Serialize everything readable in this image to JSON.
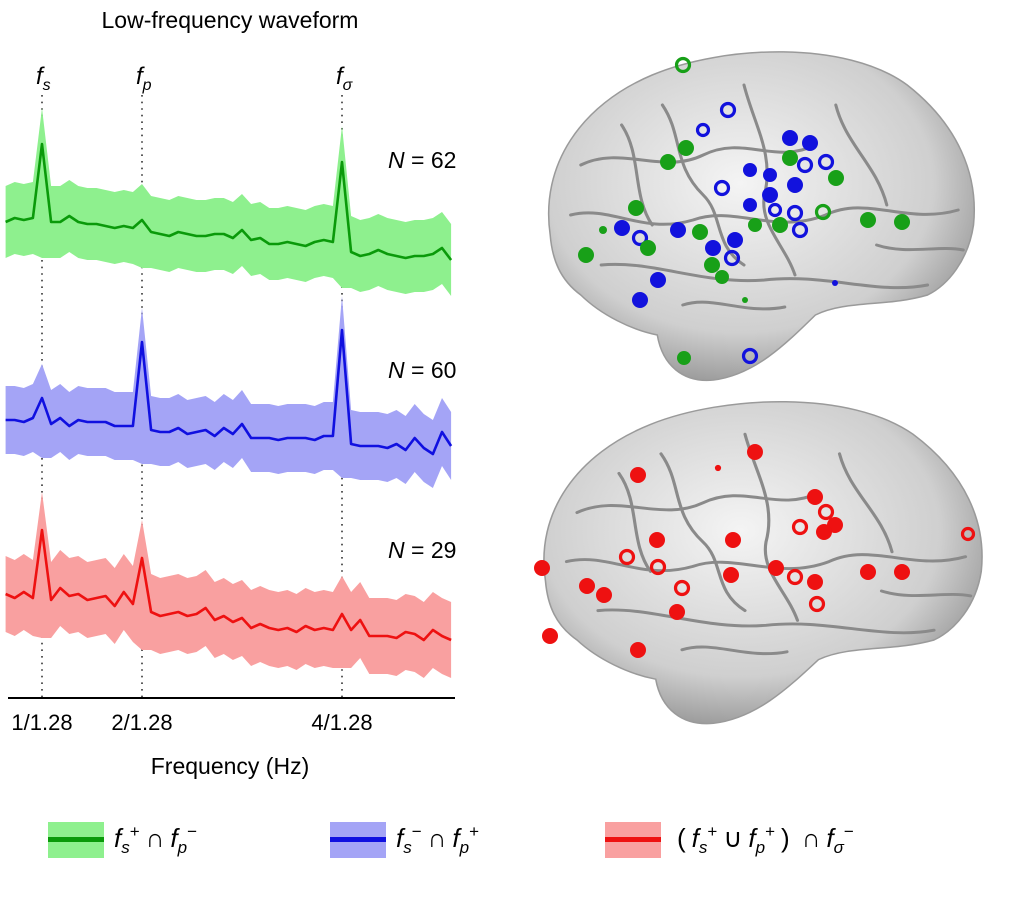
{
  "chart_data": {
    "type": "line",
    "title": "Low-frequency waveform",
    "xlabel": "Frequency (Hz)",
    "ylabel": "",
    "x_start": 0.497,
    "x_step": 0.0710227,
    "xlim": [
      0.52,
      3.99
    ],
    "xticks": [
      {
        "value": 0.78125,
        "label": "1/1.28"
      },
      {
        "value": 1.5625,
        "label": "2/1.28"
      },
      {
        "value": 3.125,
        "label": "4/1.28"
      }
    ],
    "vlines": [
      {
        "value": 0.78125,
        "label": "f",
        "sub": "s"
      },
      {
        "value": 1.5625,
        "label": "f",
        "sub": "p"
      },
      {
        "value": 3.125,
        "label": "f",
        "sub": "σ"
      }
    ],
    "series": [
      {
        "name": "fs+ ∩ fp−",
        "n_label": "N = 62",
        "color": "#0a9a0a",
        "fill": "#8ef08e",
        "ci_halfwidth": 1.8,
        "values": [
          3.9,
          4.1,
          4.0,
          4.1,
          7.8,
          3.9,
          3.9,
          4.2,
          3.9,
          3.8,
          3.8,
          3.7,
          3.6,
          3.7,
          3.6,
          4.0,
          3.4,
          3.3,
          3.2,
          3.4,
          3.3,
          3.2,
          3.2,
          3.3,
          3.3,
          3.1,
          3.5,
          3.0,
          3.1,
          2.8,
          2.8,
          2.9,
          2.8,
          2.7,
          2.9,
          3.0,
          2.9,
          6.9,
          2.4,
          2.2,
          2.3,
          2.5,
          2.3,
          2.2,
          2.1,
          2.2,
          2.2,
          2.3,
          2.6,
          2.0
        ]
      },
      {
        "name": "fs− ∩ fp+",
        "n_label": "N = 60",
        "color": "#1010e0",
        "fill": "#a4a4f6",
        "ci_halfwidth": 1.7,
        "values": [
          3.5,
          3.5,
          3.4,
          3.6,
          4.6,
          3.3,
          3.6,
          3.2,
          3.5,
          3.4,
          3.4,
          3.4,
          3.2,
          3.2,
          3.2,
          7.4,
          3.0,
          2.9,
          2.9,
          3.1,
          2.8,
          2.9,
          3.0,
          2.7,
          3.1,
          2.8,
          3.3,
          2.6,
          2.6,
          2.6,
          2.5,
          2.6,
          2.6,
          2.6,
          2.5,
          2.7,
          2.7,
          8.0,
          2.3,
          2.2,
          2.2,
          2.2,
          2.1,
          2.3,
          2.0,
          2.6,
          2.1,
          1.8,
          2.9,
          2.2
        ]
      },
      {
        "name": "(fs+ ∪ fp+) ∩ fσ−",
        "n_label": "N = 29",
        "color": "#ee1111",
        "fill": "#f9a0a0",
        "ci_halfwidth": 1.9,
        "values": [
          4.3,
          4.1,
          4.4,
          4.1,
          7.5,
          4.0,
          4.6,
          4.2,
          4.3,
          4.0,
          4.1,
          4.2,
          3.7,
          4.4,
          3.8,
          6.1,
          3.4,
          3.2,
          3.3,
          3.4,
          3.2,
          3.3,
          3.6,
          3.0,
          3.2,
          2.9,
          3.1,
          2.6,
          2.8,
          2.6,
          2.5,
          2.6,
          2.4,
          2.7,
          2.5,
          2.6,
          2.5,
          3.3,
          2.5,
          3.0,
          2.2,
          2.2,
          2.2,
          2.1,
          2.4,
          2.3,
          2.0,
          2.5,
          2.2,
          2.0
        ]
      }
    ],
    "peak_indices": [
      4,
      15,
      37
    ],
    "grid": false,
    "legend_placement": "bottom"
  },
  "legend": [
    {
      "parts": [
        [
          "f",
          "s",
          "+"
        ],
        "∩",
        [
          "f",
          "p",
          "−"
        ]
      ],
      "color": "#0a9a0a",
      "fill": "#8ef08e",
      "dot": "#0a9a0a"
    },
    {
      "parts": [
        [
          "f",
          "s",
          "−"
        ],
        "∩",
        [
          "f",
          "p",
          "+"
        ]
      ],
      "color": "#1010e0",
      "fill": "#a4a4f6",
      "dot": "#1010e0"
    },
    {
      "parts": [
        "(",
        [
          "f",
          "s",
          "+"
        ],
        "∪",
        [
          "f",
          "p",
          "+"
        ],
        ")",
        "∩",
        [
          "f",
          "σ",
          "−"
        ]
      ],
      "color": "#ee1111",
      "fill": "#f9a0a0",
      "dot": "#ee1111"
    }
  ]
}
